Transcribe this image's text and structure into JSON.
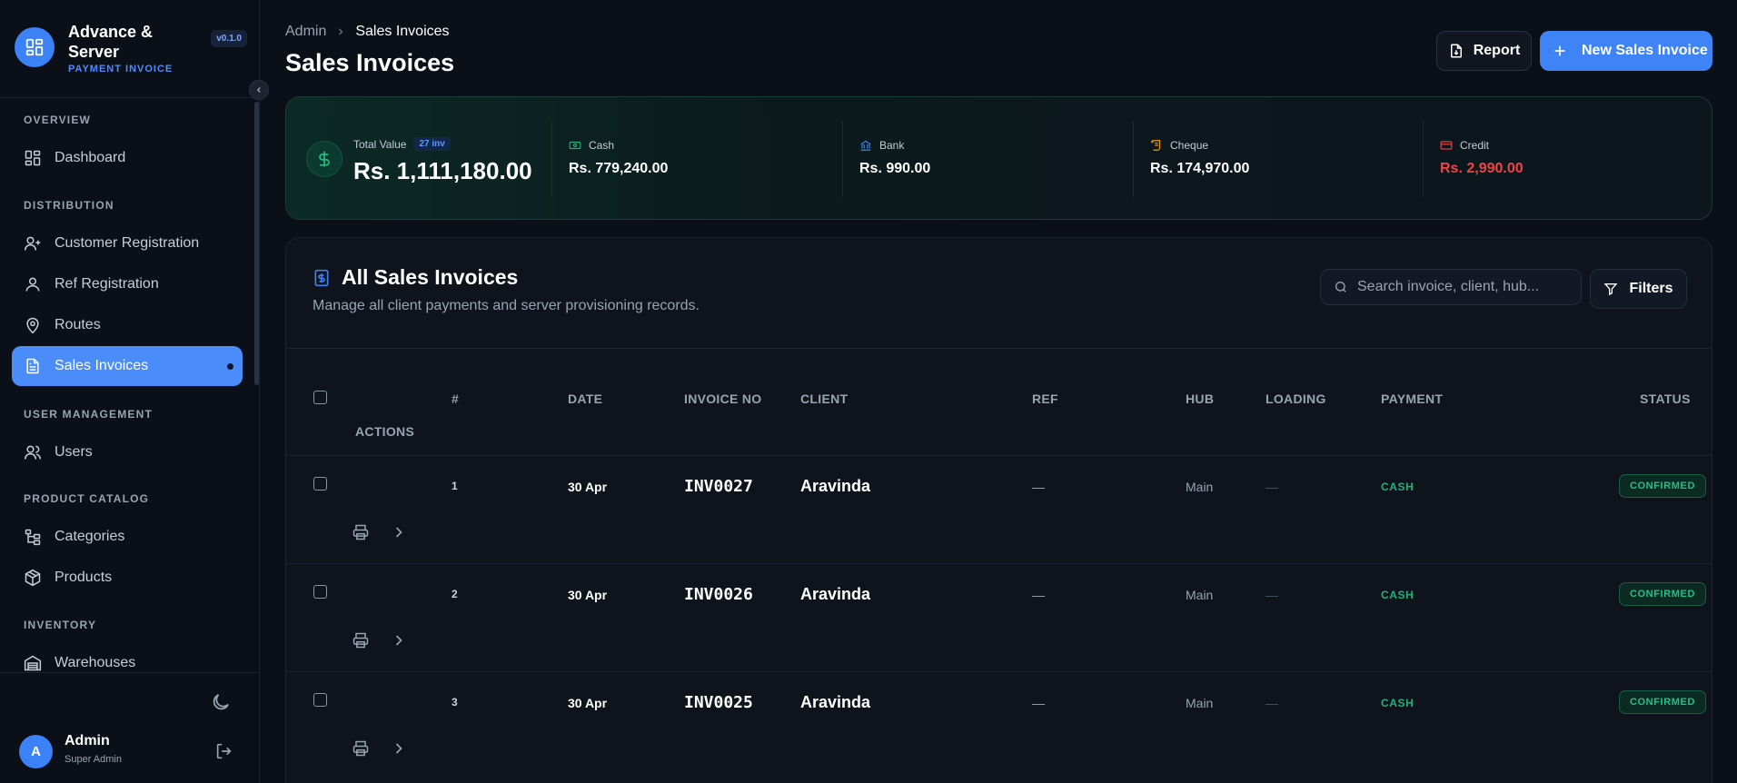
{
  "brand": {
    "name": "Advance & Server",
    "subtitle": "PAYMENT INVOICE",
    "version": "v0.1.0"
  },
  "sidebar": {
    "sections": [
      {
        "title": "OVERVIEW",
        "items": [
          {
            "label": "Dashboard",
            "icon": "layout-grid-icon"
          }
        ]
      },
      {
        "title": "DISTRIBUTION",
        "items": [
          {
            "label": "Customer Registration",
            "icon": "user-plus-icon"
          },
          {
            "label": "Ref Registration",
            "icon": "user-icon"
          },
          {
            "label": "Routes",
            "icon": "map-pin-icon"
          },
          {
            "label": "Sales Invoices",
            "icon": "file-text-icon",
            "active": true
          }
        ]
      },
      {
        "title": "USER MANAGEMENT",
        "items": [
          {
            "label": "Users",
            "icon": "users-icon"
          }
        ]
      },
      {
        "title": "PRODUCT CATALOG",
        "items": [
          {
            "label": "Categories",
            "icon": "tree-icon"
          },
          {
            "label": "Products",
            "icon": "box-icon"
          }
        ]
      },
      {
        "title": "INVENTORY",
        "items": [
          {
            "label": "Warehouses",
            "icon": "warehouse-icon"
          }
        ]
      }
    ]
  },
  "user": {
    "initial": "A",
    "name": "Admin",
    "role": "Super Admin"
  },
  "breadcrumb": {
    "root": "Admin",
    "current": "Sales Invoices"
  },
  "page": {
    "title": "Sales Invoices"
  },
  "actions": {
    "report": "Report",
    "new_invoice": "New Sales Invoice"
  },
  "stats": {
    "total": {
      "label": "Total Value",
      "badge": "27 inv",
      "value": "Rs. 1,111,180.00"
    },
    "cash": {
      "label": "Cash",
      "value": "Rs. 779,240.00",
      "color": "#22b07d"
    },
    "bank": {
      "label": "Bank",
      "value": "Rs. 990.00",
      "color": "#3b82f6"
    },
    "cheque": {
      "label": "Cheque",
      "value": "Rs. 174,970.00",
      "color": "#f59e0b"
    },
    "credit": {
      "label": "Credit",
      "value": "Rs. 2,990.00",
      "color": "#ef4444"
    }
  },
  "table_card": {
    "title": "All Sales Invoices",
    "subtitle": "Manage all client payments and server provisioning records.",
    "search_placeholder": "Search invoice, client, hub...",
    "filters": "Filters"
  },
  "table": {
    "headers": {
      "num": "#",
      "date": "DATE",
      "invoice": "INVOICE NO",
      "client": "CLIENT",
      "ref": "REF",
      "hub": "HUB",
      "loading": "LOADING",
      "payment": "PAYMENT",
      "status": "STATUS",
      "actions": "ACTIONS"
    },
    "rows": [
      {
        "num": "1",
        "date": "30 Apr",
        "invoice": "INV0027",
        "client": "Aravinda",
        "ref": "—",
        "hub": "Main",
        "loading": "—",
        "payment": "CASH",
        "status": "CONFIRMED"
      },
      {
        "num": "2",
        "date": "30 Apr",
        "invoice": "INV0026",
        "client": "Aravinda",
        "ref": "—",
        "hub": "Main",
        "loading": "—",
        "payment": "CASH",
        "status": "CONFIRMED"
      },
      {
        "num": "3",
        "date": "30 Apr",
        "invoice": "INV0025",
        "client": "Aravinda",
        "ref": "—",
        "hub": "Main",
        "loading": "—",
        "payment": "CASH",
        "status": "CONFIRMED"
      }
    ]
  }
}
